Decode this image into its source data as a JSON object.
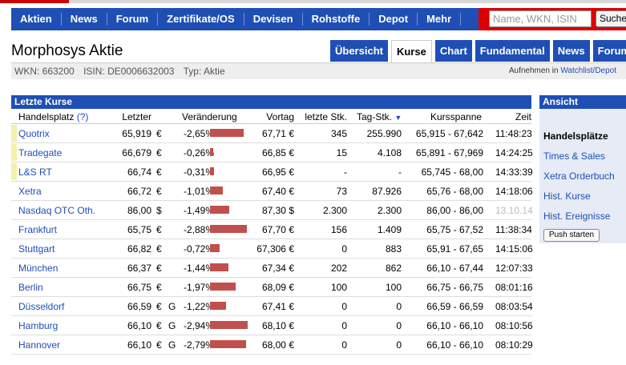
{
  "nav": {
    "items": [
      "Aktien",
      "News",
      "Forum",
      "Zertifikate/OS",
      "Devisen",
      "Rohstoffe",
      "Depot",
      "Mehr"
    ],
    "search_placeholder": "Name, WKN, ISIN",
    "search_button": "Suche"
  },
  "page": {
    "title": "Morphosys Aktie",
    "wkn": "WKN: 663200",
    "isin": "ISIN: DE0006632003",
    "typ": "Typ: Aktie",
    "watch_prefix": "Aufnehmen in",
    "watch_link": "Watchlist/Depot"
  },
  "tabs": [
    "Übersicht",
    "Kurse",
    "Chart",
    "Fundamental",
    "News",
    "Forum"
  ],
  "active_tab": "Kurse",
  "table": {
    "title": "Letzte Kurse",
    "headers": {
      "place": "Handelsplatz",
      "help": "(?)",
      "last": "Letzter",
      "change": "Veränderung",
      "prev": "Vortag",
      "last_qty": "letzte Stk.",
      "day_qty": "Tag-Stk.",
      "sort_icon": "▼",
      "range": "Kursspanne",
      "time": "Zeit"
    },
    "bar_color": "#c0504d",
    "rows": [
      {
        "place": "Quotrix",
        "last": "65,919",
        "cur": "€",
        "g": "",
        "change": "-2,65%",
        "bar": 2.65,
        "prev": "67,71 €",
        "last_qty": "345",
        "day_qty": "255.990",
        "range": "65,915 - 67,642",
        "time": "11:48:23",
        "ind": true,
        "stale": false
      },
      {
        "place": "Tradegate",
        "last": "66,679",
        "cur": "€",
        "g": "",
        "change": "-0,26%",
        "bar": 0.26,
        "prev": "66,85 €",
        "last_qty": "15",
        "day_qty": "4.108",
        "range": "65,891 - 67,969",
        "time": "14:24:25",
        "ind": true,
        "stale": false
      },
      {
        "place": "L&S RT",
        "last": "66,74",
        "cur": "€",
        "g": "",
        "change": "-0,31%",
        "bar": 0.31,
        "prev": "66,95 €",
        "last_qty": "-",
        "day_qty": "-",
        "range": "65,745 - 68,00",
        "time": "14:33:39",
        "ind": true,
        "stale": false
      },
      {
        "place": "Xetra",
        "last": "66,72",
        "cur": "€",
        "g": "",
        "change": "-1,01%",
        "bar": 1.01,
        "prev": "67,40 €",
        "last_qty": "73",
        "day_qty": "87.926",
        "range": "65,76 - 68,00",
        "time": "14:18:06",
        "ind": false,
        "stale": false
      },
      {
        "place": "Nasdaq OTC Oth.",
        "last": "86,00",
        "cur": "$",
        "g": "",
        "change": "-1,49%",
        "bar": 1.49,
        "prev": "87,30 $",
        "last_qty": "2.300",
        "day_qty": "2.300",
        "range": "86,00 - 86,00",
        "time": "13.10.14",
        "ind": false,
        "stale": true
      },
      {
        "place": "Frankfurt",
        "last": "65,75",
        "cur": "€",
        "g": "",
        "change": "-2,88%",
        "bar": 2.88,
        "prev": "67,70 €",
        "last_qty": "156",
        "day_qty": "1.409",
        "range": "65,75 - 67,52",
        "time": "11:38:34",
        "ind": false,
        "stale": false
      },
      {
        "place": "Stuttgart",
        "last": "66,82",
        "cur": "€",
        "g": "",
        "change": "-0,72%",
        "bar": 0.72,
        "prev": "67,306 €",
        "last_qty": "0",
        "day_qty": "883",
        "range": "65,91 - 67,65",
        "time": "14:15:06",
        "ind": false,
        "stale": false
      },
      {
        "place": "München",
        "last": "66,37",
        "cur": "€",
        "g": "",
        "change": "-1,44%",
        "bar": 1.44,
        "prev": "67,34 €",
        "last_qty": "202",
        "day_qty": "862",
        "range": "66,10 - 67,44",
        "time": "12:07:33",
        "ind": false,
        "stale": false
      },
      {
        "place": "Berlin",
        "last": "66,75",
        "cur": "€",
        "g": "",
        "change": "-1,97%",
        "bar": 1.97,
        "prev": "68,09 €",
        "last_qty": "100",
        "day_qty": "100",
        "range": "66,75 - 66,75",
        "time": "08:01:16",
        "ind": false,
        "stale": false
      },
      {
        "place": "Düsseldorf",
        "last": "66,59",
        "cur": "€",
        "g": "G",
        "change": "-1,22%",
        "bar": 1.22,
        "prev": "67,41 €",
        "last_qty": "0",
        "day_qty": "0",
        "range": "66,59 - 66,59",
        "time": "08:03:54",
        "ind": false,
        "stale": false
      },
      {
        "place": "Hamburg",
        "last": "66,10",
        "cur": "€",
        "g": "G",
        "change": "-2,94%",
        "bar": 2.94,
        "prev": "68,10 €",
        "last_qty": "0",
        "day_qty": "0",
        "range": "66,10 - 66,10",
        "time": "08:10:56",
        "ind": false,
        "stale": false
      },
      {
        "place": "Hannover",
        "last": "66,10",
        "cur": "€",
        "g": "G",
        "change": "-2,79%",
        "bar": 2.79,
        "prev": "68,00 €",
        "last_qty": "0",
        "day_qty": "0",
        "range": "66,10 - 66,10",
        "time": "08:10:29",
        "ind": false,
        "stale": false
      }
    ]
  },
  "sidebar": {
    "title": "Ansicht",
    "links": [
      "Handelsplätze",
      "Times & Sales",
      "Xetra Orderbuch",
      "Hist. Kurse",
      "Hist. Ereignisse"
    ],
    "current": "Handelsplätze",
    "push_button": "Push starten"
  }
}
